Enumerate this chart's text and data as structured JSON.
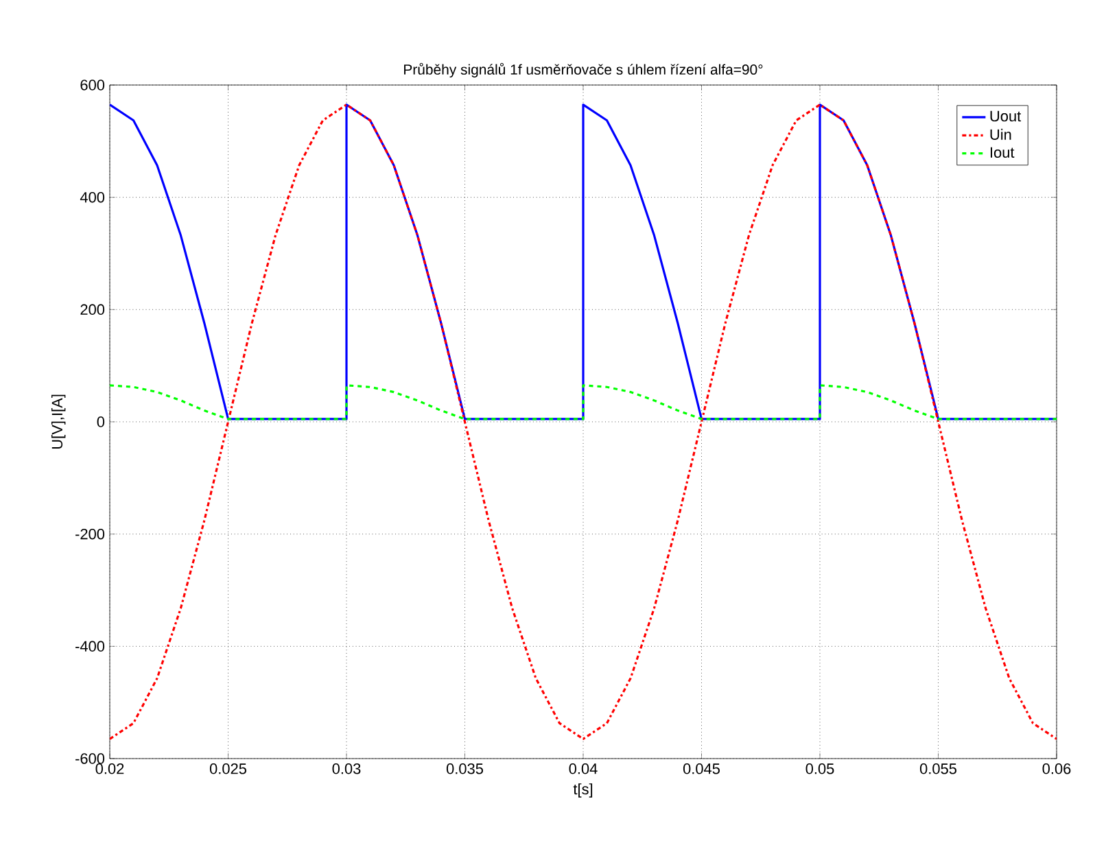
{
  "chart_data": {
    "type": "line",
    "title": "Průběhy signálů 1f usměrňovače s úhlem řízení alfa=90°",
    "xlabel": "t[s]",
    "ylabel": "U[V],I[A]",
    "xlim": [
      0.02,
      0.06
    ],
    "ylim": [
      -600,
      600
    ],
    "xticks": [
      0.02,
      0.025,
      0.03,
      0.035,
      0.04,
      0.045,
      0.05,
      0.055,
      0.06
    ],
    "yticks": [
      -600,
      -400,
      -200,
      0,
      200,
      400,
      600
    ],
    "grid": true,
    "legend": "top right",
    "marker": "none",
    "series": [
      {
        "name": "Uout",
        "color": "#0000ff",
        "line_style": "solid",
        "x": [
          0.02,
          0.021,
          0.022,
          0.023,
          0.024,
          0.025,
          0.03,
          0.03,
          0.031,
          0.032,
          0.033,
          0.034,
          0.035,
          0.04,
          0.04,
          0.041,
          0.042,
          0.043,
          0.044,
          0.045,
          0.05,
          0.05,
          0.051,
          0.052,
          0.053,
          0.054,
          0.055,
          0.06
        ],
        "values": [
          565,
          537,
          457,
          332,
          175,
          5,
          5,
          565,
          537,
          457,
          332,
          175,
          5,
          5,
          565,
          537,
          457,
          332,
          175,
          5,
          5,
          565,
          537,
          457,
          332,
          175,
          5,
          5
        ]
      },
      {
        "name": "Uin",
        "color": "#ff0000",
        "line_style": "dashdot",
        "x": [
          0.02,
          0.021,
          0.022,
          0.023,
          0.024,
          0.025,
          0.026,
          0.027,
          0.028,
          0.029,
          0.03,
          0.031,
          0.032,
          0.033,
          0.034,
          0.035,
          0.036,
          0.037,
          0.038,
          0.039,
          0.04,
          0.041,
          0.042,
          0.043,
          0.044,
          0.045,
          0.046,
          0.047,
          0.048,
          0.049,
          0.05,
          0.051,
          0.052,
          0.053,
          0.054,
          0.055,
          0.056,
          0.057,
          0.058,
          0.059,
          0.06
        ],
        "values": [
          -565,
          -537,
          -457,
          -332,
          -175,
          0,
          175,
          332,
          457,
          537,
          565,
          537,
          457,
          332,
          175,
          0,
          -175,
          -332,
          -457,
          -537,
          -565,
          -537,
          -457,
          -332,
          -175,
          0,
          175,
          332,
          457,
          537,
          565,
          537,
          457,
          332,
          175,
          0,
          -175,
          -332,
          -457,
          -537,
          -565
        ]
      },
      {
        "name": "Iout",
        "color": "#00ff00",
        "line_style": "dashed",
        "x": [
          0.02,
          0.021,
          0.022,
          0.023,
          0.024,
          0.025,
          0.03,
          0.03,
          0.031,
          0.032,
          0.033,
          0.034,
          0.035,
          0.04,
          0.04,
          0.041,
          0.042,
          0.043,
          0.044,
          0.045,
          0.05,
          0.05,
          0.051,
          0.052,
          0.053,
          0.054,
          0.055,
          0.06
        ],
        "values": [
          65,
          62,
          53,
          38,
          20,
          5,
          5,
          65,
          62,
          53,
          38,
          20,
          5,
          5,
          65,
          62,
          53,
          38,
          20,
          5,
          5,
          65,
          62,
          53,
          38,
          20,
          5,
          5
        ]
      }
    ]
  }
}
